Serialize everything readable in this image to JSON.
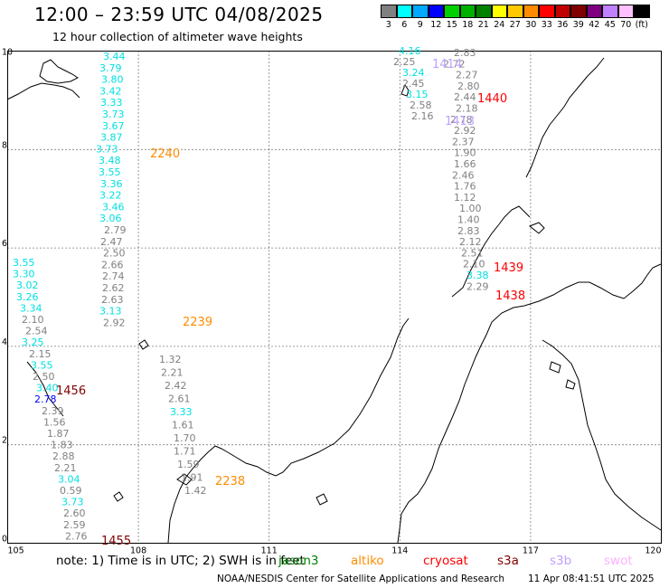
{
  "header": {
    "title": "12:00 – 23:59 UTC 04/08/2025",
    "subtitle": "12 hour collection of altimeter wave heights"
  },
  "legend": {
    "swatches": [
      {
        "label": "3",
        "color": "#808080"
      },
      {
        "label": "6",
        "color": "#00ffff"
      },
      {
        "label": "9",
        "color": "#00a8ff"
      },
      {
        "label": "12",
        "color": "#0000ff"
      },
      {
        "label": "15",
        "color": "#00d000"
      },
      {
        "label": "18",
        "color": "#00b000"
      },
      {
        "label": "21",
        "color": "#008000"
      },
      {
        "label": "24",
        "color": "#ffff00"
      },
      {
        "label": "27",
        "color": "#ffc800"
      },
      {
        "label": "30",
        "color": "#ff8c00"
      },
      {
        "label": "33",
        "color": "#ff0000"
      },
      {
        "label": "36",
        "color": "#c00000"
      },
      {
        "label": "39",
        "color": "#800000"
      },
      {
        "label": "42",
        "color": "#800080"
      },
      {
        "label": "45",
        "color": "#c080ff"
      },
      {
        "label": "70",
        "color": "#ffc0ff"
      },
      {
        "label": "(ft)",
        "color": "#000000"
      }
    ]
  },
  "axes": {
    "x_ticks": [
      "105",
      "108",
      "111",
      "114",
      "117",
      "120"
    ],
    "y_ticks": [
      "0",
      "2",
      "4",
      "6",
      "8",
      "10"
    ]
  },
  "tracks": [
    {
      "values": [
        "3.44",
        "3.79",
        "3.80",
        "3.42",
        "3.33",
        "3.73",
        "3.67",
        "3.87",
        "3.73",
        "3.48",
        "3.55",
        "3.36",
        "3.22",
        "3.46",
        "3.06",
        "2.79",
        "2.47",
        "2.50",
        "2.66",
        "2.74",
        "2.62",
        "2.63",
        "3.13",
        "2.92"
      ],
      "colors": [
        "#00e0e0",
        "#00e0e0",
        "#00e0e0",
        "#00e0e0",
        "#00e0e0",
        "#00e0e0",
        "#00e0e0",
        "#00e0e0",
        "#00e0e0",
        "#00e0e0",
        "#00e0e0",
        "#00e0e0",
        "#00e0e0",
        "#00e0e0",
        "#00e0e0",
        "#808080",
        "#808080",
        "#808080",
        "#808080",
        "#808080",
        "#808080",
        "#808080",
        "#00e0e0",
        "#808080"
      ]
    },
    {
      "values": [
        "3.55",
        "3.30",
        "3.02",
        "3.26",
        "3.34",
        "2.10",
        "2.54",
        "3.25",
        "2.15",
        "3.55",
        "2.50",
        "3.40",
        "2.78",
        "2.39",
        "1.56",
        "1.87",
        "1.83",
        "2.88",
        "2.21",
        "3.04",
        "0.59",
        "3.73",
        "2.60",
        "2.59",
        "2.76"
      ],
      "colors": [
        "#00e0e0",
        "#00e0e0",
        "#00e0e0",
        "#00e0e0",
        "#00e0e0",
        "#808080",
        "#808080",
        "#00e0e0",
        "#808080",
        "#00e0e0",
        "#808080",
        "#00e0e0",
        "#0000ff",
        "#808080",
        "#808080",
        "#808080",
        "#808080",
        "#808080",
        "#808080",
        "#00e0e0",
        "#808080",
        "#00e0e0",
        "#808080",
        "#808080",
        "#808080"
      ]
    },
    {
      "values": [
        "1.32",
        "2.21",
        "2.42",
        "2.61",
        "3.33",
        "1.61",
        "1.70",
        "1.71",
        "1.59",
        "1.91",
        "1.42"
      ],
      "colors": [
        "#808080",
        "#808080",
        "#808080",
        "#808080",
        "#00e0e0",
        "#808080",
        "#808080",
        "#808080",
        "#808080",
        "#808080",
        "#808080"
      ]
    },
    {
      "values": [
        "4.16",
        "2.25",
        "3.24",
        "2.45",
        "3.15",
        "2.58",
        "2.16"
      ],
      "colors": [
        "#00e0e0",
        "#808080",
        "#00e0e0",
        "#808080",
        "#00e0e0",
        "#808080",
        "#808080"
      ]
    },
    {
      "values": [
        "2.83",
        "2.72",
        "2.27",
        "2.80",
        "2.44",
        "2.18",
        "2.78",
        "2.92",
        "2.37",
        "1.90",
        "1.66",
        "2.46",
        "1.76",
        "1.12",
        "1.00",
        "1.40",
        "2.83",
        "2.12",
        "2.51",
        "2.10",
        "3.38",
        "2.29"
      ],
      "colors": [
        "#808080",
        "#808080",
        "#808080",
        "#808080",
        "#808080",
        "#808080",
        "#808080",
        "#808080",
        "#808080",
        "#808080",
        "#808080",
        "#808080",
        "#808080",
        "#808080",
        "#808080",
        "#808080",
        "#808080",
        "#808080",
        "#808080",
        "#808080",
        "#00e0e0",
        "#808080"
      ]
    }
  ],
  "track_labels": [
    {
      "text": "2240",
      "color": "#ff8c00"
    },
    {
      "text": "2239",
      "color": "#ff8c00"
    },
    {
      "text": "2238",
      "color": "#ff8c00"
    },
    {
      "text": "1456",
      "color": "#800000"
    },
    {
      "text": "1455",
      "color": "#800000"
    },
    {
      "text": "1440",
      "color": "#ff0000"
    },
    {
      "text": "1439",
      "color": "#ff0000"
    },
    {
      "text": "1438",
      "color": "#ff0000"
    },
    {
      "text": "1414",
      "color": "#c0a0ff"
    },
    {
      "text": "1413",
      "color": "#c0a0ff"
    }
  ],
  "footer": {
    "note": "note:  1) Time is in UTC; 2) SWH is in feet",
    "sats": [
      {
        "name": "jason3",
        "color": "#008000"
      },
      {
        "name": "altiko",
        "color": "#ff8c00"
      },
      {
        "name": "cryosat",
        "color": "#ff0000"
      },
      {
        "name": "s3a",
        "color": "#800000"
      },
      {
        "name": "s3b",
        "color": "#c0a0ff"
      },
      {
        "name": "swot",
        "color": "#ffb0ff"
      }
    ],
    "credit": "NOAA/NESDIS Center for Satellite Applications and Research",
    "timestamp": "11 Apr 08:41:51 UTC 2025"
  }
}
